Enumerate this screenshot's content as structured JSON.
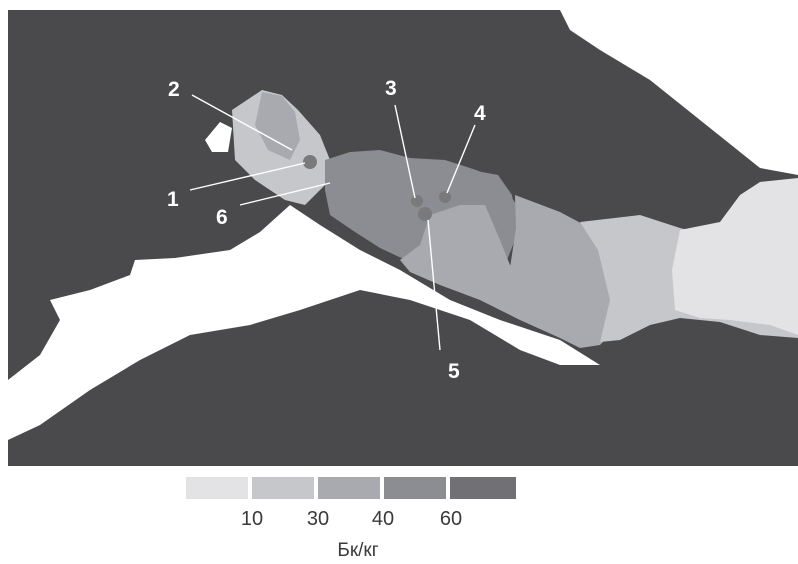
{
  "map": {
    "colors": {
      "sea": "#4a4a4c",
      "land": "#ffffff",
      "level_1": "#e3e3e5",
      "level_2": "#c6c7cb",
      "level_3": "#a8aab0",
      "level_4": "#8c8d93",
      "level_5": "#717175",
      "point": "#7a7a7d"
    },
    "markers": [
      {
        "label": "1"
      },
      {
        "label": "2"
      },
      {
        "label": "3"
      },
      {
        "label": "4"
      },
      {
        "label": "5"
      },
      {
        "label": "6"
      }
    ]
  },
  "legend": {
    "colors": [
      "#e3e3e5",
      "#c6c7cb",
      "#a8aab0",
      "#8c8d93",
      "#717175"
    ],
    "ticks": [
      "10",
      "30",
      "40",
      "60"
    ],
    "unit": "Бк/кг"
  }
}
